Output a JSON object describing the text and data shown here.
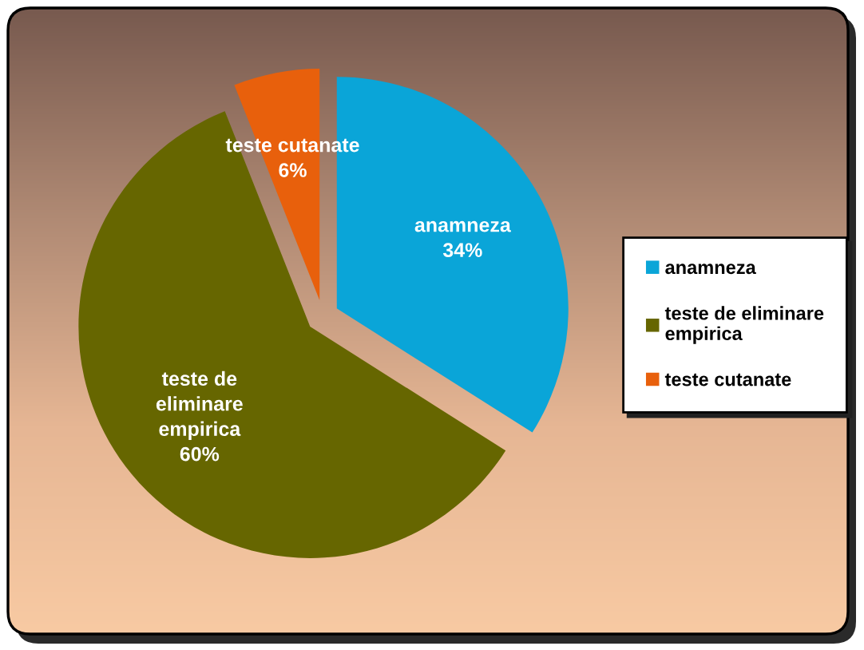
{
  "chart_data": {
    "type": "pie",
    "categories": [
      "anamneza",
      "teste de eliminare empirica",
      "teste cutanate"
    ],
    "values": [
      34,
      60,
      6
    ],
    "colors": [
      "#0aa5d8",
      "#666600",
      "#e8600c"
    ],
    "value_labels": [
      "34%",
      "60%",
      "6%"
    ],
    "legend": "right"
  }
}
